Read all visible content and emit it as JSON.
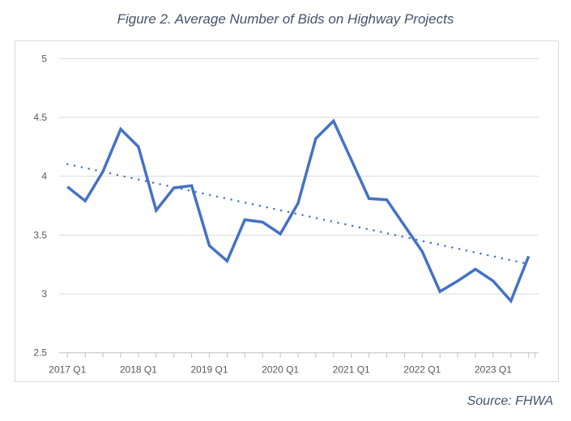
{
  "chart_data": {
    "type": "line",
    "title": "Figure 2. Average Number of Bids on Highway Projects",
    "source": "Source: FHWA",
    "xlabel": "",
    "ylabel": "",
    "ylim": [
      2.5,
      5
    ],
    "yticks": [
      "2.5",
      "3",
      "3.5",
      "4",
      "4.5",
      "5"
    ],
    "xtick_labels": [
      "2017 Q1",
      "2018 Q1",
      "2019 Q1",
      "2020 Q1",
      "2021 Q1",
      "2022 Q1",
      "2023 Q1"
    ],
    "categories": [
      "2017 Q1",
      "2017 Q2",
      "2017 Q3",
      "2017 Q4",
      "2018 Q1",
      "2018 Q2",
      "2018 Q3",
      "2018 Q4",
      "2019 Q1",
      "2019 Q2",
      "2019 Q3",
      "2019 Q4",
      "2020 Q1",
      "2020 Q2",
      "2020 Q3",
      "2020 Q4",
      "2021 Q1",
      "2021 Q2",
      "2021 Q3",
      "2021 Q4",
      "2022 Q1",
      "2022 Q2",
      "2022 Q3",
      "2022 Q4",
      "2023 Q1",
      "2023 Q2",
      "2023 Q3"
    ],
    "series": [
      {
        "values": [
          3.91,
          3.79,
          4.04,
          4.4,
          4.25,
          3.71,
          3.9,
          3.92,
          3.41,
          3.28,
          3.63,
          3.61,
          3.51,
          3.77,
          4.32,
          4.47,
          4.14,
          3.81,
          3.8,
          3.58,
          3.36,
          3.02,
          3.11,
          3.21,
          3.11,
          2.94,
          3.32
        ],
        "color": "#4472c4"
      }
    ],
    "trendline": {
      "type": "linear",
      "style": "dotted",
      "color": "#4472c4"
    },
    "grid": true,
    "legend": "none"
  }
}
